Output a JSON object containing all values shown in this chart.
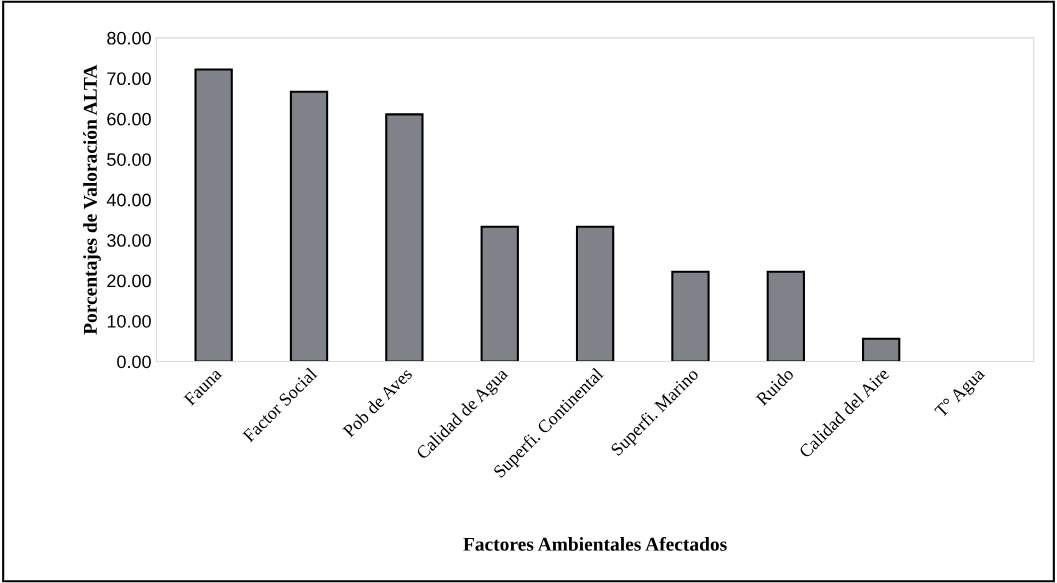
{
  "chart_data": {
    "type": "bar",
    "xlabel": "Factores Ambientales Afectados",
    "ylabel": "Porcentajes de Valoración ALTA",
    "categories": [
      "Fauna",
      "Factor Social",
      "Pob de Aves",
      "Calidad de Agua",
      "Superfi. Continental",
      "Superfi. Marino",
      "Ruido",
      "Calidad del Aire",
      "T° Agua"
    ],
    "values": [
      72.2,
      66.7,
      61.1,
      33.3,
      33.3,
      22.2,
      22.2,
      5.6,
      0
    ],
    "color": "#7f8288",
    "ylim": [
      0,
      80
    ],
    "yticks": [
      {
        "value": 0,
        "label": "0.00"
      },
      {
        "value": 10,
        "label": "10.00"
      },
      {
        "value": 20,
        "label": "20.00"
      },
      {
        "value": 30,
        "label": "30.00"
      },
      {
        "value": 40,
        "label": "40.00"
      },
      {
        "value": 50,
        "label": "50.00"
      },
      {
        "value": 60,
        "label": "60.00"
      },
      {
        "value": 70,
        "label": "70.00"
      },
      {
        "value": 80,
        "label": "80.00"
      }
    ],
    "grid": false
  }
}
